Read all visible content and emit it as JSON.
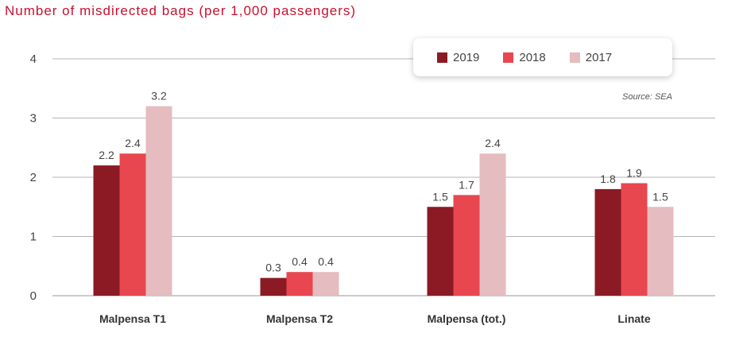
{
  "chart_data": {
    "type": "bar",
    "title": "Number of misdirected bags (per 1,000 passengers)",
    "source": "Source: SEA",
    "categories": [
      "Malpensa T1",
      "Malpensa T2",
      "Malpensa (tot.)",
      "Linate"
    ],
    "series": [
      {
        "name": "2019",
        "color": "#8b1a24",
        "values": [
          2.2,
          0.3,
          1.5,
          1.8
        ],
        "labels": [
          "2.2",
          "0.3",
          "1.5",
          "1.8"
        ]
      },
      {
        "name": "2018",
        "color": "#e8474f",
        "values": [
          2.4,
          0.4,
          1.7,
          1.9
        ],
        "labels": [
          "2.4",
          "0.4",
          "1.7",
          "1.9"
        ]
      },
      {
        "name": "2017",
        "color": "#e5bcbf",
        "values": [
          3.2,
          0.4,
          2.4,
          1.5
        ],
        "labels": [
          "3.2",
          "0.4",
          "2.4",
          "1.5"
        ]
      }
    ],
    "ylim": [
      0,
      4
    ],
    "yticks": [
      0,
      1,
      2,
      3,
      4
    ],
    "xlabel": "",
    "ylabel": "",
    "grid": true,
    "legend_position": "top-right"
  }
}
